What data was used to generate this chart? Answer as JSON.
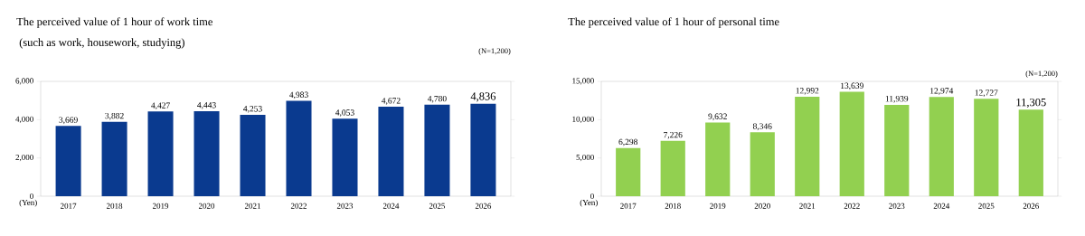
{
  "chart_data": [
    {
      "type": "bar",
      "title": "The perceived value of 1 hour of work time",
      "subtitle": "(such as work, housework, studying)",
      "ylabel": "(Yen)",
      "annotations": [
        "(N=1,200)"
      ],
      "categories": [
        "2017",
        "2018",
        "2019",
        "2020",
        "2021",
        "2022",
        "2023",
        "2024",
        "2025",
        "2026"
      ],
      "values": [
        3669,
        3882,
        4427,
        4443,
        4253,
        4983,
        4053,
        4672,
        4780,
        4836
      ],
      "value_labels": [
        "3,669",
        "3,882",
        "4,427",
        "4,443",
        "4,253",
        "4,983",
        "4,053",
        "4,672",
        "4,780",
        "4,836"
      ],
      "color": "#0a3a8f",
      "ylim": [
        0,
        6000
      ],
      "yticks": [
        {
          "value": 0,
          "label": "0"
        },
        {
          "value": 2000,
          "label": "2,000"
        },
        {
          "value": 4000,
          "label": "4,000"
        },
        {
          "value": 6000,
          "label": "6,000"
        }
      ]
    },
    {
      "type": "bar",
      "title": "The perceived value of 1 hour of personal time",
      "ylabel": "(Yen)",
      "annotations": [
        "(N=1,200)"
      ],
      "categories": [
        "2017",
        "2018",
        "2019",
        "2020",
        "2021",
        "2022",
        "2023",
        "2024",
        "2025",
        "2026"
      ],
      "values": [
        6298,
        7226,
        9632,
        8346,
        12992,
        13639,
        11939,
        12974,
        12727,
        11305
      ],
      "value_labels": [
        "6,298",
        "7,226",
        "9,632",
        "8,346",
        "12,992",
        "13,639",
        "11,939",
        "12,974",
        "12,727",
        "11,305"
      ],
      "color": "#92d050",
      "ylim": [
        0,
        15000
      ],
      "yticks": [
        {
          "value": 0,
          "label": "0"
        },
        {
          "value": 5000,
          "label": "5,000"
        },
        {
          "value": 10000,
          "label": "10,000"
        },
        {
          "value": 15000,
          "label": "15,000"
        }
      ]
    }
  ]
}
